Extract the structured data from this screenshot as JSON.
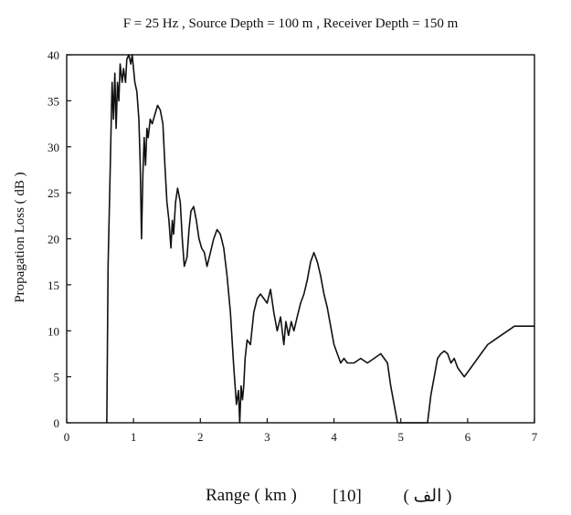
{
  "chart_data": {
    "type": "line",
    "title": "F = 25 Hz ,  Source Depth = 100 m ,  Receiver Depth = 150 m",
    "xlabel": "Range ( km )",
    "xlabel_ref": "[10]",
    "xlabel_tag": "( الف )",
    "ylabel": "Propagation Loss ( dB )",
    "xlim": [
      0,
      7
    ],
    "ylim": [
      0,
      40
    ],
    "x_ticks": [
      "0",
      "1",
      "2",
      "3",
      "4",
      "5",
      "6",
      "7"
    ],
    "y_ticks": [
      "0",
      "5",
      "10",
      "15",
      "20",
      "25",
      "30",
      "35",
      "40"
    ],
    "grid": false,
    "series": [
      {
        "x": [
          0.6,
          0.62,
          0.65,
          0.68,
          0.7,
          0.72,
          0.74,
          0.76,
          0.78,
          0.8,
          0.83,
          0.85,
          0.88,
          0.9,
          0.93,
          0.96,
          0.98,
          1.02,
          1.05,
          1.08,
          1.1,
          1.12,
          1.14,
          1.16,
          1.18,
          1.2,
          1.22,
          1.25,
          1.28,
          1.32,
          1.36,
          1.4,
          1.44,
          1.47,
          1.5,
          1.53,
          1.56,
          1.58,
          1.6,
          1.63,
          1.66,
          1.7,
          1.73,
          1.76,
          1.8,
          1.83,
          1.86,
          1.9,
          1.94,
          1.98,
          2.02,
          2.06,
          2.1,
          2.15,
          2.2,
          2.25,
          2.3,
          2.35,
          2.4,
          2.45,
          2.5,
          2.54,
          2.57,
          2.59,
          2.61,
          2.63,
          2.65,
          2.67,
          2.7,
          2.75,
          2.8,
          2.85,
          2.9,
          2.95,
          3.0,
          3.05,
          3.1,
          3.15,
          3.2,
          3.25,
          3.28,
          3.32,
          3.36,
          3.4,
          3.45,
          3.5,
          3.55,
          3.6,
          3.65,
          3.7,
          3.75,
          3.8,
          3.85,
          3.9,
          3.95,
          4.0,
          4.05,
          4.1,
          4.15,
          4.2,
          4.3,
          4.4,
          4.5,
          4.6,
          4.7,
          4.8,
          4.85,
          4.9,
          4.95,
          5.0,
          5.4,
          5.45,
          5.5,
          5.55,
          5.6,
          5.65,
          5.7,
          5.75,
          5.8,
          5.85,
          5.9,
          5.95,
          6.0,
          6.05,
          6.1,
          6.15,
          6.2,
          6.3,
          6.4,
          6.5,
          6.6,
          6.7,
          6.8,
          6.9,
          7.0
        ],
        "y": [
          0,
          17,
          27,
          37,
          33,
          38,
          32,
          37,
          35,
          39,
          37,
          38.5,
          37,
          39.5,
          40,
          39,
          40,
          37,
          36,
          33,
          28,
          20,
          27,
          31,
          28,
          32,
          31,
          33,
          32.5,
          33.5,
          34.5,
          34,
          32.5,
          28,
          24,
          22,
          19,
          22,
          20.5,
          24,
          25.5,
          24,
          20,
          17,
          18,
          21,
          23,
          23.5,
          22,
          20,
          19,
          18.5,
          17,
          18.5,
          20,
          21,
          20.5,
          19,
          16,
          12,
          6,
          2,
          3.5,
          0,
          4,
          2.5,
          4,
          7,
          9,
          8.5,
          12,
          13.5,
          14,
          13.5,
          13,
          14.5,
          12,
          10,
          11.5,
          8.5,
          11,
          9.5,
          11,
          10,
          11.5,
          13,
          14,
          15.5,
          17.5,
          18.5,
          17.5,
          16,
          14,
          12.5,
          10.5,
          8.5,
          7.5,
          6.5,
          7,
          6.5,
          6.5,
          7,
          6.5,
          7,
          7.5,
          6.5,
          4,
          2,
          0,
          0,
          0,
          3,
          5,
          7,
          7.5,
          7.8,
          7.5,
          6.5,
          7,
          6,
          5.5,
          5,
          5.5,
          6,
          6.5,
          7,
          7.5,
          8.5,
          9,
          9.5,
          10,
          10.5,
          10.5,
          10.5,
          10.5
        ]
      }
    ]
  }
}
